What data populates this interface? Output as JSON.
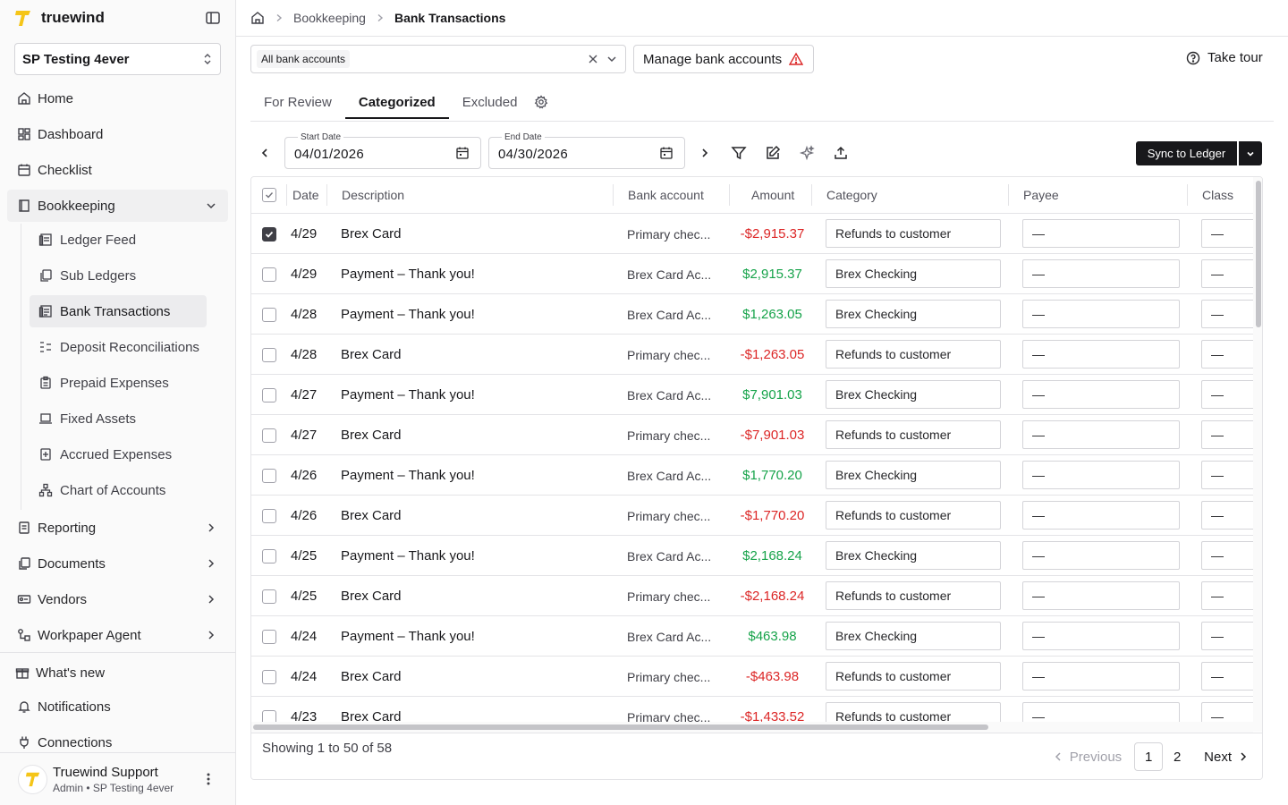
{
  "brand": {
    "name": "truewind"
  },
  "org": {
    "selected": "SP Testing 4ever"
  },
  "nav": {
    "home": "Home",
    "dashboard": "Dashboard",
    "checklist": "Checklist",
    "bookkeeping": "Bookkeeping",
    "sub": [
      {
        "label": "Ledger Feed",
        "icon": "ledger-icon"
      },
      {
        "label": "Sub Ledgers",
        "icon": "copy-icon"
      },
      {
        "label": "Bank Transactions",
        "icon": "bank-icon",
        "selected": true
      },
      {
        "label": "Deposit Reconciliations",
        "icon": "reconcile-icon"
      },
      {
        "label": "Prepaid Expenses",
        "icon": "clipboard-icon"
      },
      {
        "label": "Fixed Assets",
        "icon": "laptop-icon"
      },
      {
        "label": "Accrued Expenses",
        "icon": "plus-file-icon"
      },
      {
        "label": "Chart of Accounts",
        "icon": "hierarchy-icon"
      }
    ],
    "reporting": "Reporting",
    "documents": "Documents",
    "vendors": "Vendors",
    "workpaper": "Workpaper Agent",
    "whats_new": "What's new",
    "notifications": "Notifications",
    "connections": "Connections"
  },
  "user": {
    "name": "Truewind Support",
    "role": "Admin • SP Testing 4ever"
  },
  "breadcrumb": {
    "parent": "Bookkeeping",
    "current": "Bank Transactions"
  },
  "accounts": {
    "chip": "All bank accounts",
    "manage_label": "Manage bank accounts"
  },
  "tour": {
    "label": "Take tour"
  },
  "tabs": [
    "For Review",
    "Categorized",
    "Excluded"
  ],
  "active_tab": "Categorized",
  "dates": {
    "start_label": "Start Date",
    "start_value": "04/01/2026",
    "end_label": "End Date",
    "end_value": "04/30/2026"
  },
  "sync": {
    "label": "Sync to Ledger"
  },
  "table": {
    "columns": [
      "Date",
      "Description",
      "Bank account",
      "Amount",
      "Category",
      "Payee",
      "Class"
    ],
    "rows": [
      {
        "date": "4/29",
        "desc": "Brex Card",
        "bank": "Primary chec...",
        "amount": "-$2,915.37",
        "neg": true,
        "category": "Refunds to customer",
        "payee": "—",
        "class": "—",
        "checked": true
      },
      {
        "date": "4/29",
        "desc": "Payment – Thank you!",
        "bank": "Brex Card Ac...",
        "amount": "$2,915.37",
        "neg": false,
        "category": "Brex Checking",
        "payee": "—",
        "class": "—",
        "checked": false
      },
      {
        "date": "4/28",
        "desc": "Payment – Thank you!",
        "bank": "Brex Card Ac...",
        "amount": "$1,263.05",
        "neg": false,
        "category": "Brex Checking",
        "payee": "—",
        "class": "—",
        "checked": false
      },
      {
        "date": "4/28",
        "desc": "Brex Card",
        "bank": "Primary chec...",
        "amount": "-$1,263.05",
        "neg": true,
        "category": "Refunds to customer",
        "payee": "—",
        "class": "—",
        "checked": false
      },
      {
        "date": "4/27",
        "desc": "Payment – Thank you!",
        "bank": "Brex Card Ac...",
        "amount": "$7,901.03",
        "neg": false,
        "category": "Brex Checking",
        "payee": "—",
        "class": "—",
        "checked": false
      },
      {
        "date": "4/27",
        "desc": "Brex Card",
        "bank": "Primary chec...",
        "amount": "-$7,901.03",
        "neg": true,
        "category": "Refunds to customer",
        "payee": "—",
        "class": "—",
        "checked": false
      },
      {
        "date": "4/26",
        "desc": "Payment – Thank you!",
        "bank": "Brex Card Ac...",
        "amount": "$1,770.20",
        "neg": false,
        "category": "Brex Checking",
        "payee": "—",
        "class": "—",
        "checked": false
      },
      {
        "date": "4/26",
        "desc": "Brex Card",
        "bank": "Primary chec...",
        "amount": "-$1,770.20",
        "neg": true,
        "category": "Refunds to customer",
        "payee": "—",
        "class": "—",
        "checked": false
      },
      {
        "date": "4/25",
        "desc": "Payment – Thank you!",
        "bank": "Brex Card Ac...",
        "amount": "$2,168.24",
        "neg": false,
        "category": "Brex Checking",
        "payee": "—",
        "class": "—",
        "checked": false
      },
      {
        "date": "4/25",
        "desc": "Brex Card",
        "bank": "Primary chec...",
        "amount": "-$2,168.24",
        "neg": true,
        "category": "Refunds to customer",
        "payee": "—",
        "class": "—",
        "checked": false
      },
      {
        "date": "4/24",
        "desc": "Payment – Thank you!",
        "bank": "Brex Card Ac...",
        "amount": "$463.98",
        "neg": false,
        "category": "Brex Checking",
        "payee": "—",
        "class": "—",
        "checked": false
      },
      {
        "date": "4/24",
        "desc": "Brex Card",
        "bank": "Primary chec...",
        "amount": "-$463.98",
        "neg": true,
        "category": "Refunds to customer",
        "payee": "—",
        "class": "—",
        "checked": false
      },
      {
        "date": "4/23",
        "desc": "Brex Card",
        "bank": "Primary chec...",
        "amount": "-$1,433.52",
        "neg": true,
        "category": "Refunds to customer",
        "payee": "—",
        "class": "—",
        "checked": false
      }
    ]
  },
  "pagination": {
    "showing": "Showing 1 to 50 of 58",
    "previous": "Previous",
    "next": "Next",
    "pages": [
      "1",
      "2"
    ],
    "current_page": "1"
  },
  "colors": {
    "brand_yellow": "#f5c518",
    "negative": "#dc2626",
    "positive": "#16a34a",
    "primary_dark": "#18181b"
  }
}
